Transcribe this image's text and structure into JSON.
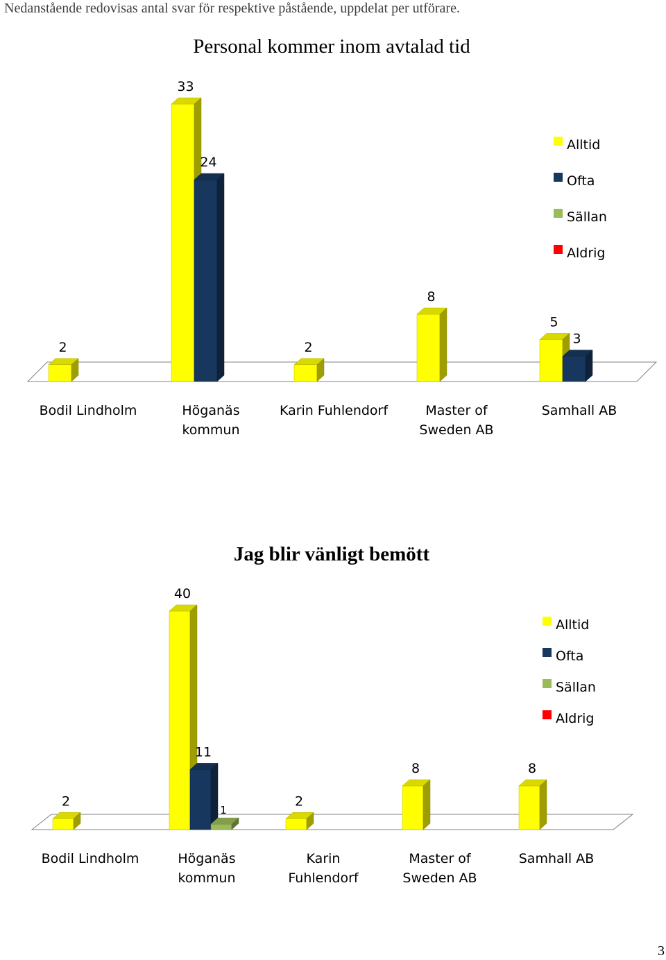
{
  "intro_text": "Nedanstående redovisas antal svar för respektive påstående, uppdelat per utförare.",
  "page_number": "3",
  "chart_data": [
    {
      "type": "bar",
      "title": "Personal kommer inom avtalad tid",
      "title_bold": false,
      "categories": [
        "Bodil Lindholm",
        "Höganäs kommun",
        "Karin Fuhlendorf",
        "Master of Sweden AB",
        "Samhall AB"
      ],
      "series": [
        {
          "name": "Alltid",
          "color": "#ffff00",
          "values": [
            2,
            33,
            2,
            8,
            5
          ]
        },
        {
          "name": "Ofta",
          "color": "#17375e",
          "values": [
            0,
            24,
            0,
            0,
            3
          ]
        },
        {
          "name": "Sällan",
          "color": "#9bbb59",
          "values": [
            0,
            0,
            0,
            0,
            0
          ]
        },
        {
          "name": "Aldrig",
          "color": "#ff0000",
          "values": [
            0,
            0,
            0,
            0,
            0
          ]
        }
      ],
      "legend_position": "right",
      "grid": false,
      "ylim": [
        0,
        33
      ]
    },
    {
      "type": "bar",
      "title": "Jag blir vänligt bemött",
      "title_bold": true,
      "categories": [
        "Bodil Lindholm",
        "Höganäs kommun",
        "Karin Fuhlendorf",
        "Master of Sweden AB",
        "Samhall AB"
      ],
      "series": [
        {
          "name": "Alltid",
          "color": "#ffff00",
          "values": [
            2,
            40,
            2,
            8,
            8
          ]
        },
        {
          "name": "Ofta",
          "color": "#17375e",
          "values": [
            0,
            11,
            0,
            0,
            0
          ]
        },
        {
          "name": "Sällan",
          "color": "#9bbb59",
          "values": [
            0,
            1,
            0,
            0,
            0
          ]
        },
        {
          "name": "Aldrig",
          "color": "#ff0000",
          "values": [
            0,
            0,
            0,
            0,
            0
          ]
        }
      ],
      "legend_position": "right",
      "grid": false,
      "ylim": [
        0,
        40
      ]
    }
  ]
}
